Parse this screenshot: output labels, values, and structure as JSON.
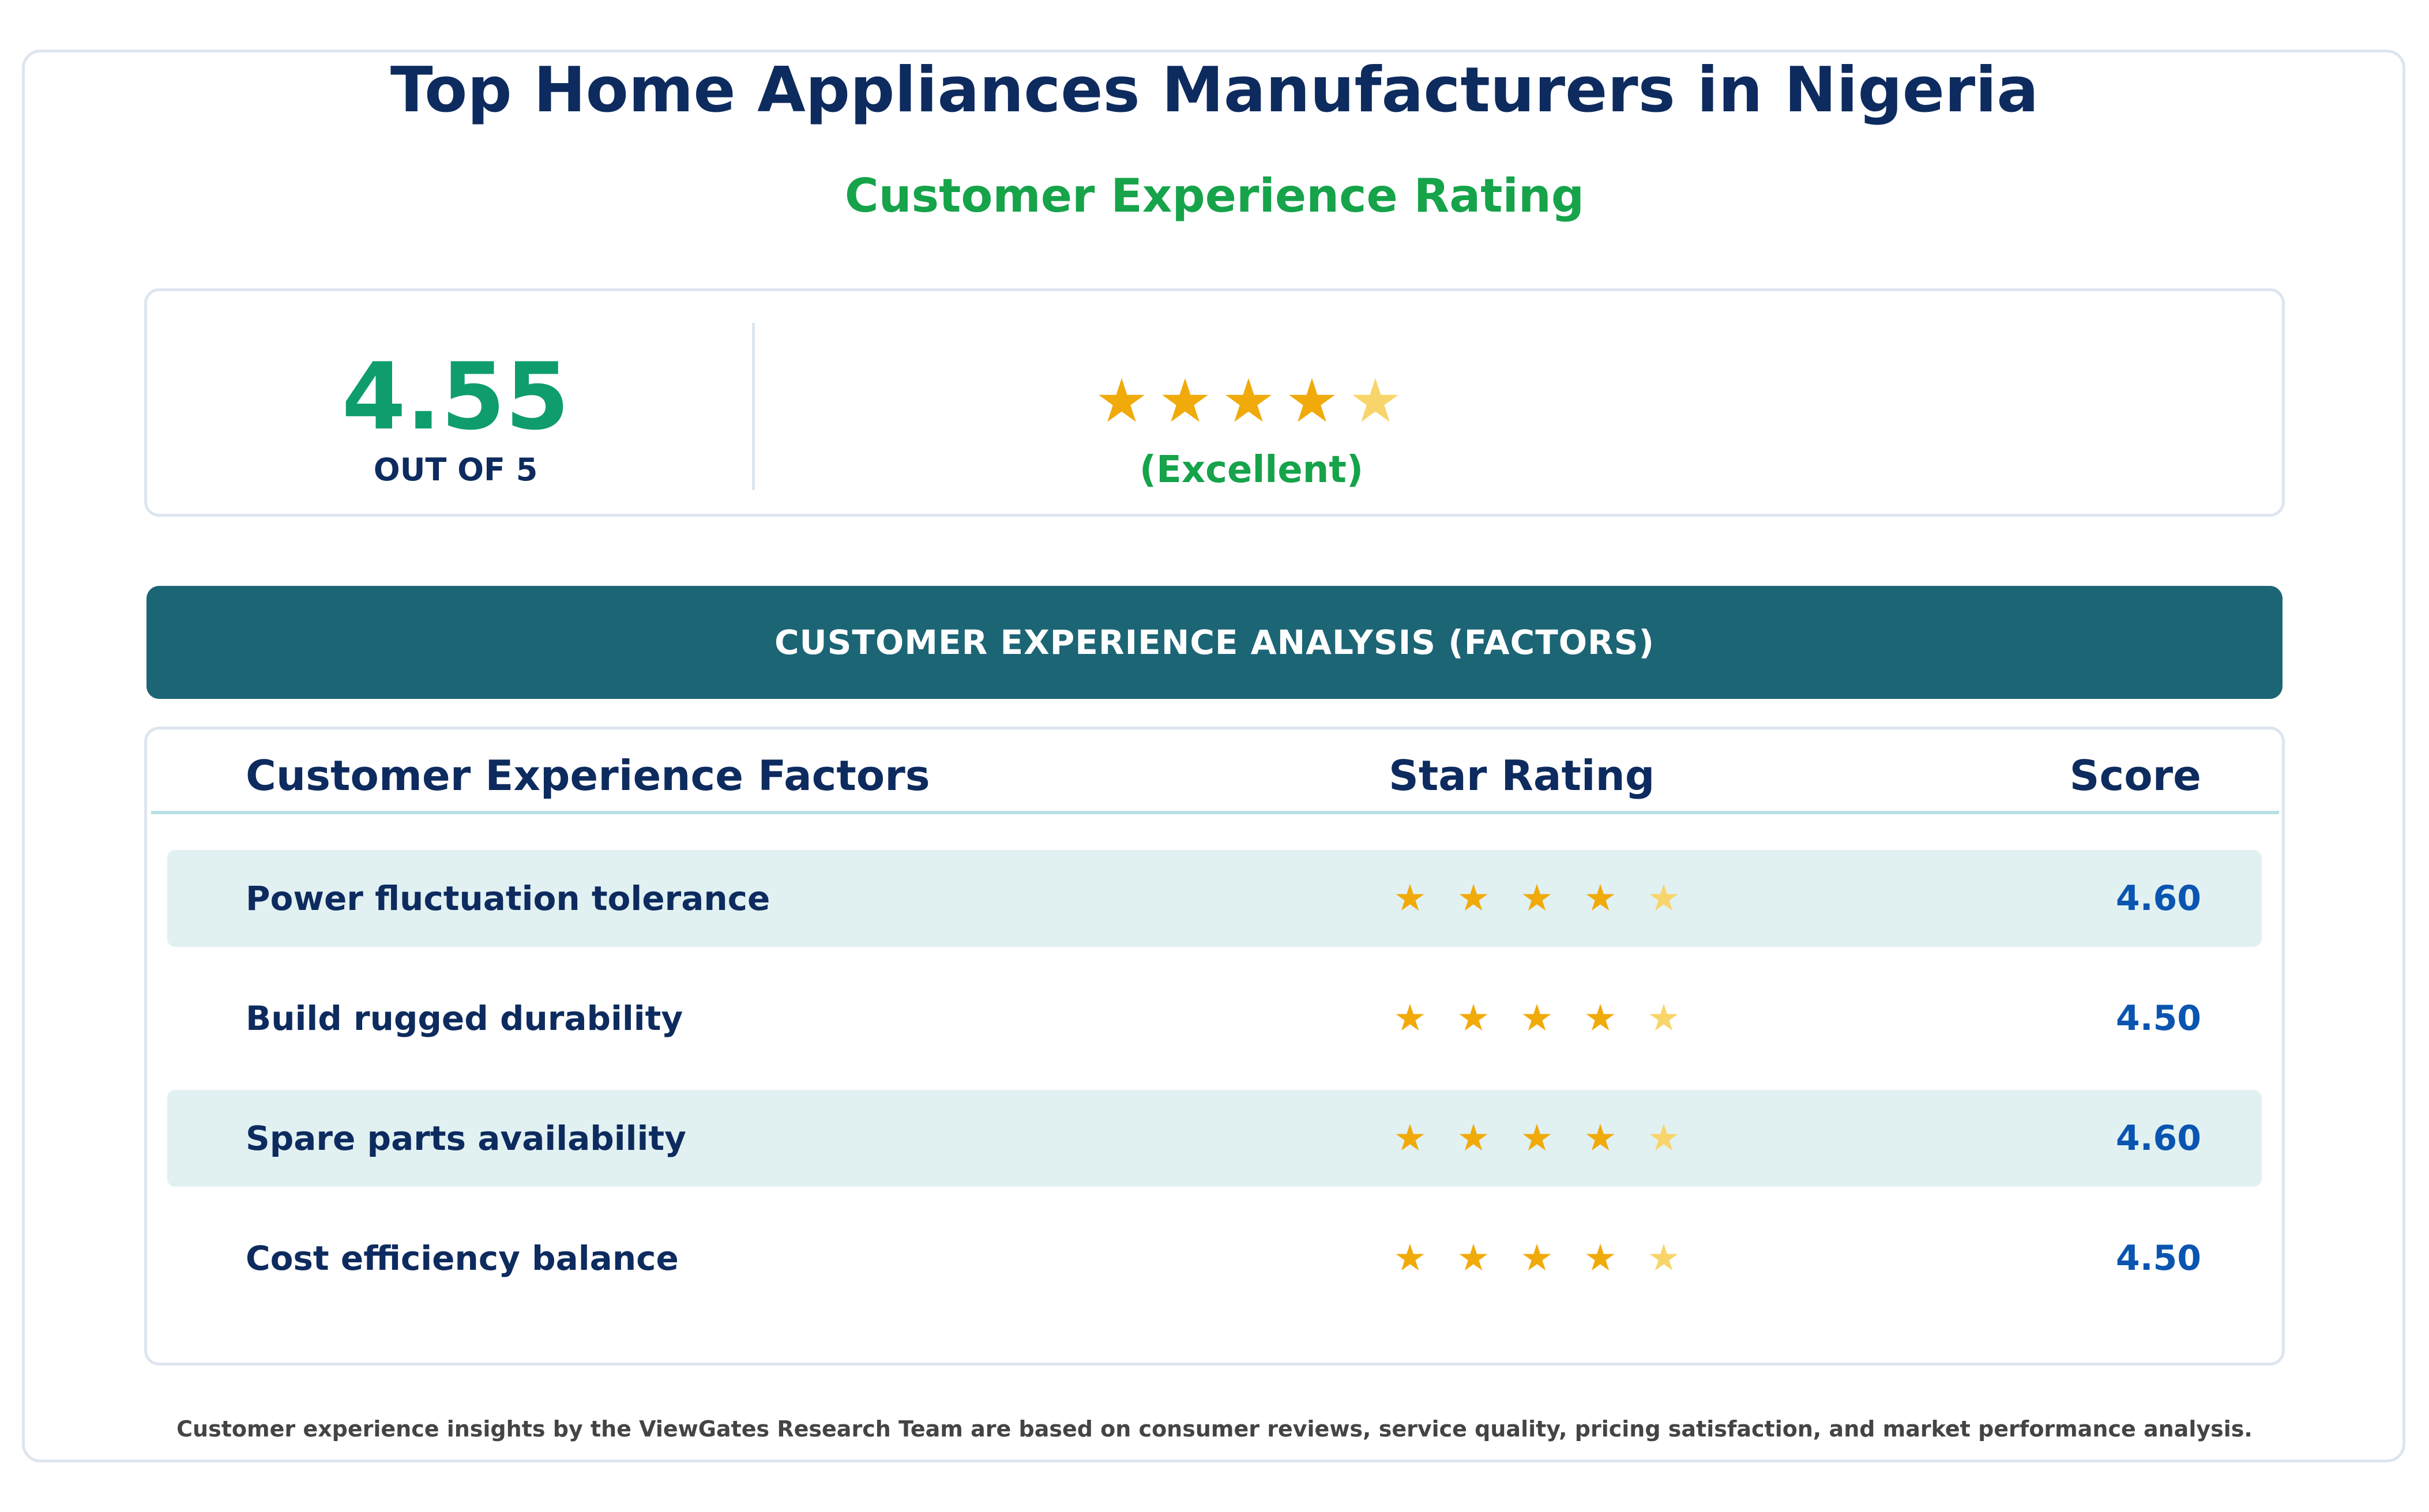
{
  "header": {
    "title": "Top Home Appliances Manufacturers in Nigeria",
    "subtitle": "Customer Experience Rating"
  },
  "summary": {
    "score": "4.55",
    "out_of": "OUT OF 5",
    "stars": [
      "★",
      "★",
      "★",
      "★",
      "★"
    ],
    "star_fill": [
      1,
      1,
      1,
      1,
      0.5
    ],
    "verdict": "(Excellent)"
  },
  "banner": {
    "text": "CUSTOMER EXPERIENCE ANALYSIS (FACTORS)"
  },
  "table": {
    "headers": {
      "factor": "Customer Experience Factors",
      "rating": "Star Rating",
      "score": "Score"
    },
    "rows": [
      {
        "label": "Power fluctuation tolerance",
        "stars": [
          "★",
          "★",
          "★",
          "★",
          "★"
        ],
        "score": "4.60"
      },
      {
        "label": "Build rugged durability",
        "stars": [
          "★",
          "★",
          "★",
          "★",
          "★"
        ],
        "score": "4.50"
      },
      {
        "label": "Spare parts availability",
        "stars": [
          "★",
          "★",
          "★",
          "★",
          "★"
        ],
        "score": "4.60"
      },
      {
        "label": "Cost efficiency balance",
        "stars": [
          "★",
          "★",
          "★",
          "★",
          "★"
        ],
        "score": "4.50"
      }
    ]
  },
  "footer": {
    "note": "Customer experience insights by the ViewGates Research Team are based on consumer reviews, service quality, pricing satisfaction, and market performance analysis."
  },
  "colors": {
    "navy": "#0d2b5e",
    "green": "#16a34a",
    "score_green": "#0f9d6e",
    "star_full": "#f0aa0a",
    "star_partial": "#f8d56a",
    "banner": "#1c6575",
    "row_alt": "#e1f1f2",
    "score_blue": "#0a55b0"
  }
}
